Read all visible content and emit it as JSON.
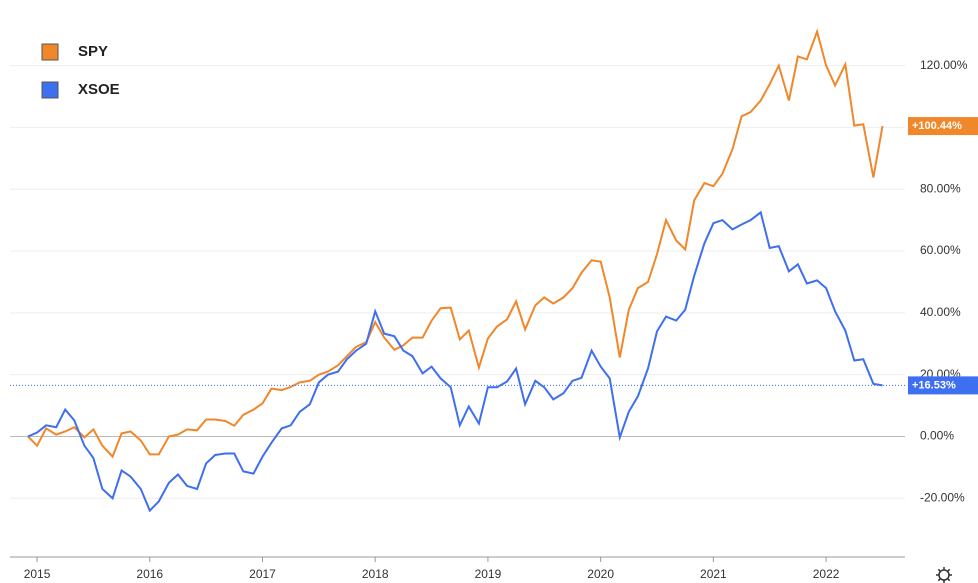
{
  "chart_data": {
    "type": "line",
    "x": [
      2014.92,
      2015.0,
      2015.08,
      2015.17,
      2015.25,
      2015.33,
      2015.42,
      2015.5,
      2015.58,
      2015.67,
      2015.75,
      2015.83,
      2015.92,
      2016.0,
      2016.08,
      2016.17,
      2016.25,
      2016.33,
      2016.42,
      2016.5,
      2016.58,
      2016.67,
      2016.75,
      2016.83,
      2016.92,
      2017.0,
      2017.08,
      2017.17,
      2017.25,
      2017.33,
      2017.42,
      2017.5,
      2017.58,
      2017.67,
      2017.75,
      2017.83,
      2017.92,
      2018.0,
      2018.08,
      2018.17,
      2018.25,
      2018.33,
      2018.42,
      2018.5,
      2018.58,
      2018.67,
      2018.75,
      2018.83,
      2018.92,
      2019.0,
      2019.08,
      2019.17,
      2019.25,
      2019.33,
      2019.42,
      2019.5,
      2019.58,
      2019.67,
      2019.75,
      2019.83,
      2019.92,
      2020.0,
      2020.08,
      2020.17,
      2020.25,
      2020.33,
      2020.42,
      2020.5,
      2020.58,
      2020.67,
      2020.75,
      2020.83,
      2020.92,
      2021.0,
      2021.08,
      2021.17,
      2021.25,
      2021.33,
      2021.42,
      2021.5,
      2021.58,
      2021.67,
      2021.75,
      2021.83,
      2021.92,
      2022.0,
      2022.08,
      2022.17,
      2022.25,
      2022.33,
      2022.42,
      2022.5
    ],
    "series": [
      {
        "name": "SPY",
        "color": "#f0872a",
        "end_label": "+100.44%",
        "values": [
          0,
          -3,
          2.6,
          0.6,
          1.6,
          3,
          -0.3,
          2.3,
          -3,
          -6.5,
          1,
          1.6,
          -1.3,
          -5.8,
          -5.8,
          0,
          0.6,
          2.3,
          2,
          5.5,
          5.5,
          5,
          3.5,
          7,
          8.7,
          10.7,
          15.5,
          15,
          16,
          17.5,
          18,
          20,
          21,
          23,
          26,
          29,
          30.5,
          37,
          32,
          28,
          29.5,
          32,
          32,
          37.5,
          41.5,
          41.7,
          31.4,
          34.3,
          22.3,
          31.7,
          35.6,
          37.9,
          43.7,
          34.6,
          42.4,
          45,
          43,
          45,
          48,
          53,
          57,
          56.6,
          45,
          25.6,
          41,
          48,
          50,
          59,
          70,
          63.4,
          60.5,
          76.4,
          82,
          81,
          85,
          93,
          103.6,
          105,
          108.7,
          114,
          120,
          108.7,
          123,
          122,
          131,
          120,
          113.6,
          120.4,
          100.6,
          101,
          83.8,
          100.44
        ]
      },
      {
        "name": "XSOE",
        "color": "#3d6ff0",
        "end_label": "+16.53%",
        "values": [
          0,
          1.3,
          3.6,
          3,
          8.7,
          5.2,
          -3,
          -7,
          -17,
          -20,
          -11,
          -13,
          -17,
          -24,
          -21,
          -15,
          -12.3,
          -16,
          -17,
          -8.7,
          -6,
          -5.5,
          -5.5,
          -11.3,
          -12,
          -6.5,
          -2,
          2.6,
          3.6,
          8,
          10.4,
          17.5,
          20,
          21,
          25,
          27.8,
          30,
          40.5,
          33.3,
          32.4,
          27.8,
          26,
          20.4,
          22.6,
          18.8,
          15.9,
          3.6,
          9.7,
          4.2,
          15.9,
          15.9,
          17.8,
          22,
          10.4,
          18,
          15.9,
          12,
          14,
          18,
          19,
          27.8,
          22.6,
          18.8,
          -0.3,
          8,
          13,
          22,
          34,
          38.8,
          37.5,
          41,
          52,
          62.5,
          69,
          70,
          67,
          68.6,
          70,
          72.5,
          61,
          61.6,
          53.4,
          55.7,
          49.5,
          50.5,
          48,
          40.5,
          34.3,
          24.6,
          25,
          17,
          16.53
        ]
      }
    ],
    "xlim": [
      2014.76,
      2022.7
    ],
    "xticks": [
      2015,
      2016,
      2017,
      2018,
      2019,
      2020,
      2021,
      2022
    ],
    "ylim": [
      -39,
      138
    ],
    "yticks": [
      {
        "value": -20,
        "label": "-20.00%"
      },
      {
        "value": 0,
        "label": "0.00%"
      },
      {
        "value": 20,
        "label": "20.00%"
      },
      {
        "value": 40,
        "label": "40.00%"
      },
      {
        "value": 60,
        "label": "60.00%"
      },
      {
        "value": 80,
        "label": "80.00%"
      },
      {
        "value": 100,
        "label": "100.00%"
      },
      {
        "value": 120,
        "label": "120.00%"
      }
    ],
    "grid": true,
    "legend": "top-left"
  }
}
